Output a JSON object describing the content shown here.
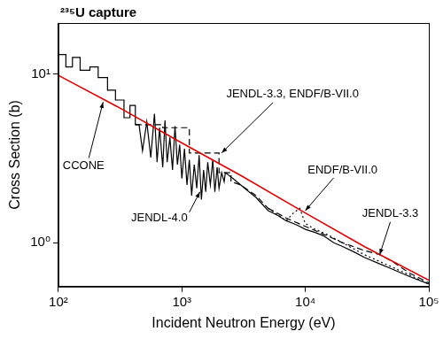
{
  "chart_data": {
    "type": "line",
    "title": "²³⁵U capture",
    "x_label": "Incident Neutron Energy (eV)",
    "y_label": "Cross Section (b)",
    "log": true,
    "grid": false,
    "xlim": [
      100,
      100000
    ],
    "ylim": [
      0.55,
      20
    ],
    "xticks": [
      {
        "value": 100,
        "label": "10²"
      },
      {
        "value": 1000,
        "label": "10³"
      },
      {
        "value": 10000,
        "label": "10⁴"
      },
      {
        "value": 100000,
        "label": "10⁵"
      }
    ],
    "yticks": [
      {
        "value": 1,
        "label": "10⁰"
      },
      {
        "value": 10,
        "label": "10¹"
      }
    ],
    "series": [
      {
        "color": "#e00000",
        "line_style": "solid",
        "x": [
          100,
          300,
          1000,
          3000,
          10000,
          30000,
          100000
        ],
        "values": [
          9.8,
          6.4,
          3.9,
          2.5,
          1.5,
          0.95,
          0.6
        ]
      },
      {
        "color": "#000000",
        "line_style": "solid",
        "x": [
          100,
          115,
          115,
          130,
          130,
          150,
          150,
          180,
          180,
          210,
          210,
          250,
          250,
          290,
          290,
          340,
          340,
          380,
          380,
          420,
          420,
          450,
          480,
          520,
          560,
          600,
          630,
          660,
          700,
          730,
          760,
          800,
          840,
          880,
          920,
          960,
          1000,
          1050,
          1100,
          1150,
          1200,
          1260,
          1320,
          1380,
          1440,
          1500,
          1560,
          1620,
          1700,
          1780,
          1850,
          1930,
          2000,
          2100,
          2200,
          2250,
          2600,
          3000,
          3500,
          4000,
          5000,
          6000,
          7000,
          8000,
          9000,
          10000,
          12000,
          14000,
          17000,
          20000,
          25000,
          30000,
          40000,
          50000,
          70000,
          100000
        ],
        "values": [
          13,
          13,
          11,
          11,
          12.5,
          12.5,
          10.5,
          10.5,
          11,
          11,
          9.5,
          9.5,
          8,
          8,
          7,
          7,
          5.5,
          5.5,
          6.5,
          6.5,
          5,
          5,
          3.5,
          5.2,
          3.2,
          5.8,
          3.0,
          4.8,
          2.8,
          5.3,
          3.0,
          4.2,
          2.7,
          4.9,
          2.9,
          3.8,
          2.4,
          3.6,
          2.2,
          3.1,
          1.9,
          2.9,
          2.1,
          3.3,
          1.8,
          2.7,
          2.0,
          3.0,
          2.2,
          3.1,
          2.0,
          2.8,
          2.1,
          2.6,
          2.3,
          2.6,
          2.4,
          2.2,
          2.0,
          1.85,
          1.55,
          1.45,
          1.35,
          1.3,
          1.25,
          1.2,
          1.15,
          1.1,
          1.0,
          0.95,
          0.88,
          0.82,
          0.75,
          0.7,
          0.63,
          0.57
        ]
      },
      {
        "color": "#000000",
        "line_style": "dashed",
        "x": [
          420,
          700,
          700,
          1150,
          1150,
          2000,
          2000,
          2500,
          2500,
          3000,
          4000,
          5000
        ],
        "values": [
          5,
          5,
          4.8,
          4.8,
          3.4,
          3.4,
          2.6,
          2.6,
          2.3,
          2.2,
          1.9,
          1.6
        ]
      },
      {
        "color": "#000000",
        "line_style": "dashed",
        "x": [
          5000,
          7000,
          10000,
          15000,
          20000,
          30000,
          40000,
          50000,
          70000,
          100000
        ],
        "values": [
          1.6,
          1.4,
          1.25,
          1.1,
          1.0,
          0.9,
          0.85,
          0.78,
          0.66,
          0.58
        ]
      },
      {
        "color": "#000000",
        "line_style": "dotted",
        "x": [
          5000,
          7000,
          8000,
          9000,
          10000,
          12000,
          15000,
          20000,
          30000,
          50000,
          100000
        ],
        "values": [
          1.6,
          1.35,
          1.5,
          1.6,
          1.3,
          1.2,
          1.12,
          1.0,
          0.85,
          0.72,
          0.57
        ]
      }
    ],
    "annotations": [
      {
        "text": "CCONE",
        "x": 230,
        "y": 6.8
      },
      {
        "text": "JENDL-3.3, ENDF/B-VII.0",
        "x": 2100,
        "y": 3.4
      },
      {
        "text": "JENDL-4.0",
        "x": 1400,
        "y": 2.0
      },
      {
        "text": "ENDF/B-VII.0",
        "x": 10000,
        "y": 1.55
      },
      {
        "text": "JENDL-3.3",
        "x": 40000,
        "y": 0.85
      }
    ]
  }
}
